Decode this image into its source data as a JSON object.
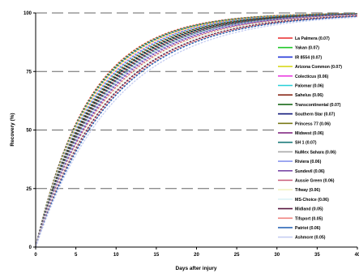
{
  "chart_data": {
    "type": "line",
    "xlabel": "Days after injury",
    "ylabel": "Recovery (%)",
    "xlim": [
      0,
      40
    ],
    "ylim": [
      0,
      100
    ],
    "xticks": [
      0,
      5,
      10,
      15,
      20,
      25,
      30,
      35,
      40
    ],
    "yticks": [
      0,
      25,
      50,
      75,
      100
    ],
    "grid": "horizontal dashed",
    "legend_position": "right",
    "series": [
      {
        "name": "La Palmera (0.07)",
        "color": "#e8292a",
        "rate": 0.15
      },
      {
        "name": "Yakan (0.07)",
        "color": "#22c82a",
        "rate": 0.148
      },
      {
        "name": "IR 8554 (0.07)",
        "color": "#2035d8",
        "rate": 0.146
      },
      {
        "name": "Arizona Common (0.07)",
        "color": "#d8d81e",
        "rate": 0.144
      },
      {
        "name": "Colecticus (0.06)",
        "color": "#ea40e0",
        "rate": 0.14
      },
      {
        "name": "Palomar (0.06)",
        "color": "#28d0d8",
        "rate": 0.138
      },
      {
        "name": "Sahelus (0.06)",
        "color": "#8a2a1a",
        "rate": 0.135
      },
      {
        "name": "Transcontinental (0.07)",
        "color": "#186a18",
        "rate": 0.132
      },
      {
        "name": "Southern Star (0.07)",
        "color": "#10187a",
        "rate": 0.13
      },
      {
        "name": "Princess 77 (0.06)",
        "color": "#7a7a18",
        "rate": 0.128
      },
      {
        "name": "Midwest (0.06)",
        "color": "#7a1a7a",
        "rate": 0.126
      },
      {
        "name": "SH 1 (0.07)",
        "color": "#1a7a7a",
        "rate": 0.124
      },
      {
        "name": "NuMex Sahara (0.06)",
        "color": "#a8a8a8",
        "rate": 0.122
      },
      {
        "name": "Riviera (0.06)",
        "color": "#8896ee",
        "rate": 0.12
      },
      {
        "name": "Sundevil (0.06)",
        "color": "#7a4aa8",
        "rate": 0.118
      },
      {
        "name": "Aussie Green (0.06)",
        "color": "#c85a78",
        "rate": 0.115
      },
      {
        "name": "Tifway (0.06)",
        "color": "#f2f2c2",
        "rate": 0.113
      },
      {
        "name": "MS-Choice (0.06)",
        "color": "#dcf2f6",
        "rate": 0.111
      },
      {
        "name": "Midland (0.05)",
        "color": "#5a1a42",
        "rate": 0.109
      },
      {
        "name": "Tifsport (0.05)",
        "color": "#f08480",
        "rate": 0.107
      },
      {
        "name": "Patriot (0.06)",
        "color": "#1a5ab0",
        "rate": 0.105
      },
      {
        "name": "Ashmore (0.05)",
        "color": "#c6cef2",
        "rate": 0.1
      }
    ]
  }
}
